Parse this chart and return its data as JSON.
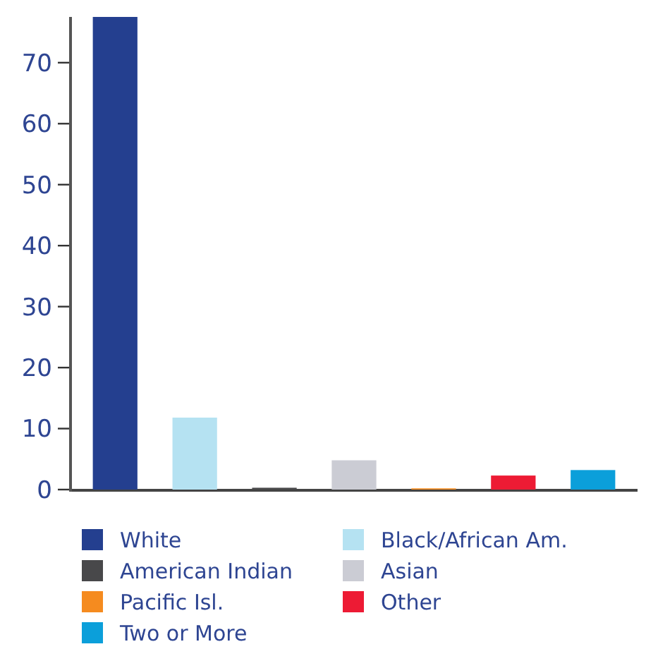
{
  "chart_data": {
    "type": "bar",
    "categories": [
      null
    ],
    "series": [
      {
        "name": "White",
        "color": "#243f8f",
        "values": [
          77.5
        ]
      },
      {
        "name": "Black/African Am.",
        "color": "#b5e2f2",
        "values": [
          11.8
        ]
      },
      {
        "name": "American Indian",
        "color": "#48484a",
        "values": [
          0.3
        ]
      },
      {
        "name": "Asian",
        "color": "#cbccd4",
        "values": [
          4.8
        ]
      },
      {
        "name": "Pacific Isl.",
        "color": "#f58b1f",
        "values": [
          0.2
        ]
      },
      {
        "name": "Other",
        "color": "#ed1b34",
        "values": [
          2.3
        ]
      },
      {
        "name": "Two or More",
        "color": "#0b9fda",
        "values": [
          3.2
        ]
      }
    ],
    "ylim": [
      0,
      77.5
    ],
    "yticks": [
      0,
      10,
      20,
      30,
      40,
      50,
      60,
      70
    ],
    "grid": false,
    "legend": "bottom",
    "tick_labels": "y"
  }
}
